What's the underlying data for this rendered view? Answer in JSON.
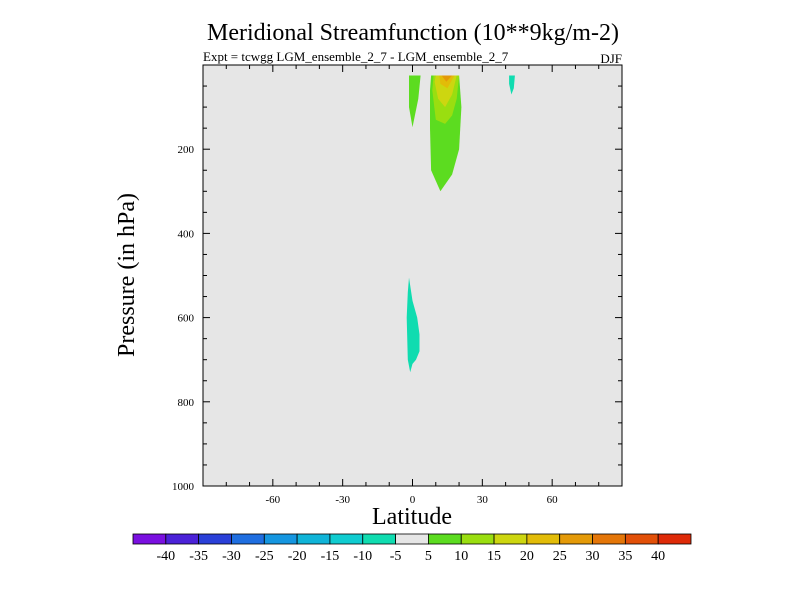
{
  "chart_data": {
    "type": "contour",
    "title": "Meridional Streamfunction (10**9kg/m-2)",
    "subtitle_left": "Expt = tcwgg LGM_ensemble_2_7 - LGM_ensemble_2_7",
    "subtitle_right": "DJF",
    "xlabel": "Latitude",
    "ylabel": "Pressure (in hPa)",
    "xlim": [
      -90,
      90
    ],
    "ylim": [
      1000,
      0
    ],
    "x_ticks": [
      -60,
      -30,
      0,
      30,
      60
    ],
    "y_ticks": [
      200,
      400,
      600,
      800,
      1000
    ],
    "colorbar": {
      "levels": [
        "-40",
        "-35",
        "-30",
        "-25",
        "-20",
        "-15",
        "-10",
        "-5",
        "5",
        "10",
        "15",
        "20",
        "25",
        "30",
        "35",
        "40"
      ],
      "colors": [
        "#7a10e0",
        "#4b22d8",
        "#2a40d8",
        "#1f6ee0",
        "#1596e0",
        "#10b4d8",
        "#10ccd0",
        "#10dcb0",
        "#e6e6e6",
        "#5cdc20",
        "#9ade10",
        "#cdd610",
        "#e2bc08",
        "#e49a08",
        "#e47608",
        "#e25008",
        "#de2a08"
      ]
    },
    "background_color": "#e6e6e6",
    "regions": [
      {
        "name": "cell-near-equator-north",
        "color": "#5cdc20",
        "points": [
          [
            -1.5,
            25
          ],
          [
            3.5,
            25
          ],
          [
            2.5,
            80
          ],
          [
            0,
            148
          ],
          [
            -1.5,
            100
          ]
        ]
      },
      {
        "name": "cell-north-outer",
        "color": "#5cdc20",
        "points": [
          [
            8,
            25
          ],
          [
            20,
            25
          ],
          [
            21,
            100
          ],
          [
            20,
            200
          ],
          [
            17,
            260
          ],
          [
            12,
            300
          ],
          [
            8,
            250
          ],
          [
            7.5,
            150
          ],
          [
            7.5,
            60
          ]
        ]
      },
      {
        "name": "cell-north-layer-10",
        "color": "#9ade10",
        "points": [
          [
            9,
            25
          ],
          [
            20,
            25
          ],
          [
            19,
            80
          ],
          [
            17,
            120
          ],
          [
            14,
            140
          ],
          [
            10,
            130
          ],
          [
            8.5,
            60
          ]
        ]
      },
      {
        "name": "cell-north-layer-15",
        "color": "#cdd610",
        "points": [
          [
            10,
            25
          ],
          [
            19,
            25
          ],
          [
            17,
            70
          ],
          [
            14,
            100
          ],
          [
            11,
            80
          ],
          [
            9.5,
            40
          ]
        ]
      },
      {
        "name": "cell-north-layer-20",
        "color": "#e2bc08",
        "points": [
          [
            11.5,
            25
          ],
          [
            18,
            25
          ],
          [
            15,
            55
          ],
          [
            12,
            45
          ]
        ]
      },
      {
        "name": "cell-north-layer-25",
        "color": "#e49a08",
        "points": [
          [
            12.5,
            25
          ],
          [
            17,
            25
          ],
          [
            14.5,
            40
          ]
        ]
      },
      {
        "name": "cell-north-small-negative",
        "color": "#10dcb0",
        "points": [
          [
            41.5,
            25
          ],
          [
            44,
            25
          ],
          [
            43.5,
            55
          ],
          [
            42.5,
            70
          ],
          [
            41.5,
            45
          ]
        ]
      },
      {
        "name": "cell-south-lower-negative",
        "color": "#10dcb0",
        "points": [
          [
            -1.5,
            505
          ],
          [
            0,
            560
          ],
          [
            2,
            600
          ],
          [
            3,
            640
          ],
          [
            3,
            680
          ],
          [
            1.5,
            700
          ],
          [
            0,
            710
          ],
          [
            -1,
            730
          ],
          [
            -2,
            700
          ],
          [
            -2.5,
            600
          ],
          [
            -2,
            540
          ]
        ]
      }
    ]
  }
}
